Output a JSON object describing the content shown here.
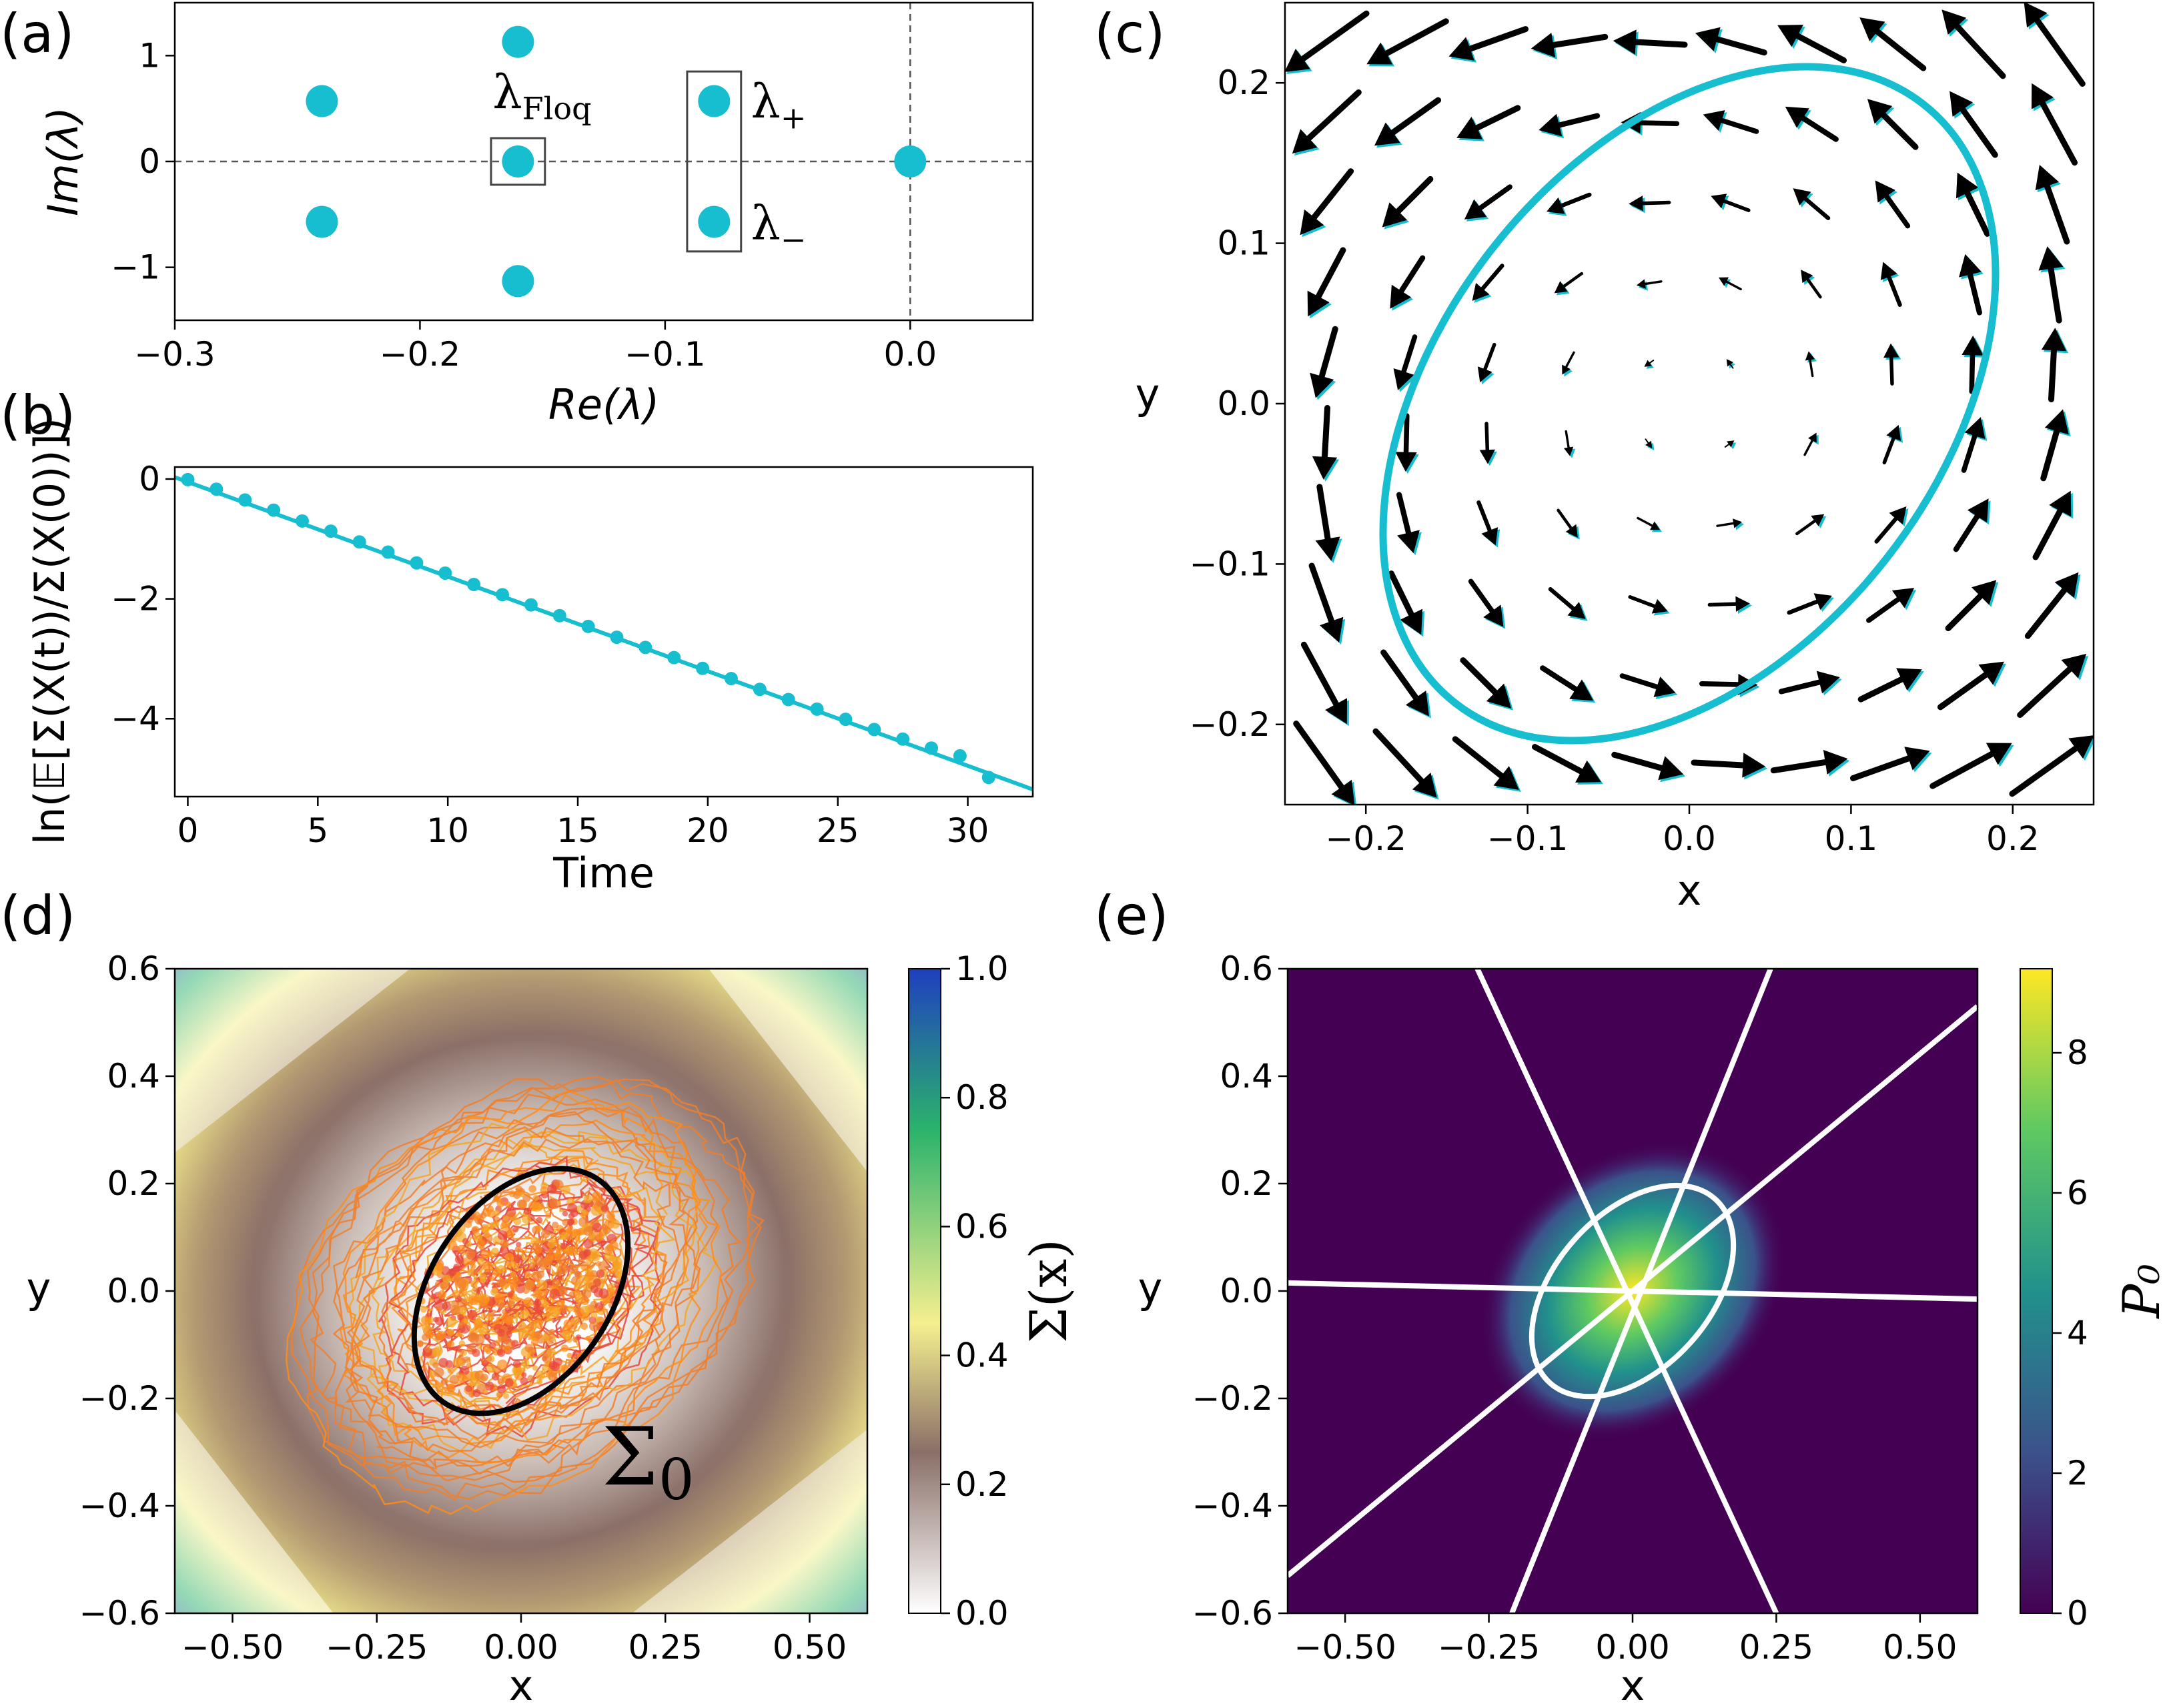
{
  "colors": {
    "teal": "#17becf",
    "black": "#000000",
    "trajectory": [
      "#e8473a",
      "#f07f2c",
      "#f5a623",
      "#ff8c1a"
    ],
    "sigma_map": [
      "#ffffff",
      "#8a6f68",
      "#f5ef8f",
      "#2bb36b",
      "#1f3fbf"
    ],
    "viridis": [
      "#440154",
      "#3b528b",
      "#21918c",
      "#5ec962",
      "#fde725"
    ]
  },
  "panels": {
    "a": {
      "letter": "(a)"
    },
    "b": {
      "letter": "(b)"
    },
    "c": {
      "letter": "(c)"
    },
    "d": {
      "letter": "(d)"
    },
    "e": {
      "letter": "(e)"
    }
  },
  "chart_data": [
    {
      "id": "a",
      "type": "scatter",
      "xlabel": "Re(λ)",
      "ylabel": "Im(λ)",
      "xlim": [
        -0.3,
        0.05
      ],
      "ylim": [
        -1.5,
        1.5
      ],
      "xticks": [
        -0.3,
        -0.2,
        -0.1,
        0.0
      ],
      "xtick_labels": [
        "−0.3",
        "−0.2",
        "−0.1",
        "0.0"
      ],
      "yticks": [
        1,
        0,
        -1
      ],
      "ytick_labels": [
        "1",
        "0",
        "−1"
      ],
      "points": [
        {
          "x": -0.24,
          "y": 0.57
        },
        {
          "x": -0.24,
          "y": -0.57
        },
        {
          "x": -0.16,
          "y": 1.13
        },
        {
          "x": -0.16,
          "y": 0.0
        },
        {
          "x": -0.16,
          "y": -1.13
        },
        {
          "x": -0.08,
          "y": 0.57
        },
        {
          "x": -0.08,
          "y": -0.57
        },
        {
          "x": 0.0,
          "y": 0.0
        }
      ],
      "annotations": [
        {
          "text": "λ",
          "sub": "Floq",
          "x": -0.16,
          "y": 0.45
        },
        {
          "text": "λ",
          "sub": "+",
          "x": -0.065,
          "y": 0.55
        },
        {
          "text": "λ",
          "sub": "−",
          "x": -0.065,
          "y": -0.6
        }
      ],
      "boxes": [
        {
          "x0": -0.171,
          "x1": -0.149,
          "y0": -0.22,
          "y1": 0.22
        },
        {
          "x0": -0.091,
          "x1": -0.069,
          "y0": -0.85,
          "y1": 0.85
        }
      ],
      "guides": {
        "h": 0,
        "v": 0
      }
    },
    {
      "id": "b",
      "type": "line",
      "xlabel": "Time",
      "ylabel": "ln(𝔼[Σ(X(t))/Σ(X(0))])",
      "xlim": [
        -0.5,
        32.5
      ],
      "ylim": [
        -5.3,
        0.2
      ],
      "xticks": [
        0,
        5,
        10,
        15,
        20,
        25,
        30
      ],
      "xtick_labels": [
        "0",
        "5",
        "10",
        "15",
        "20",
        "25",
        "30"
      ],
      "yticks": [
        0,
        -2,
        -4
      ],
      "ytick_labels": [
        "0",
        "−2",
        "−4"
      ],
      "line": {
        "x0": -0.5,
        "y0": 0.03,
        "x1": 32.5,
        "y1": -5.18
      },
      "points_x": [
        0,
        1.1,
        2.2,
        3.3,
        4.4,
        5.5,
        6.6,
        7.7,
        8.8,
        9.9,
        11,
        12.1,
        13.2,
        14.3,
        15.4,
        16.5,
        17.6,
        18.7,
        19.8,
        20.9,
        22,
        23.1,
        24.2,
        25.3,
        26.4,
        27.5,
        28.6,
        29.7,
        30.8
      ],
      "points_y": [
        -0.01,
        -0.17,
        -0.35,
        -0.52,
        -0.7,
        -0.87,
        -1.05,
        -1.22,
        -1.4,
        -1.57,
        -1.76,
        -1.93,
        -2.1,
        -2.28,
        -2.46,
        -2.64,
        -2.81,
        -2.98,
        -3.16,
        -3.33,
        -3.51,
        -3.68,
        -3.84,
        -4.01,
        -4.18,
        -4.34,
        -4.49,
        -4.62,
        -4.98
      ]
    },
    {
      "id": "c",
      "type": "quiver",
      "xlabel": "x",
      "ylabel": "y",
      "xlim": [
        -0.25,
        0.25
      ],
      "ylim": [
        -0.25,
        0.25
      ],
      "xticks": [
        -0.2,
        -0.1,
        0.0,
        0.1,
        0.2
      ],
      "xtick_labels": [
        "−0.2",
        "−0.1",
        "0.0",
        "0.1",
        "0.2"
      ],
      "yticks": [
        0.2,
        0.1,
        0.0,
        -0.1,
        -0.2
      ],
      "ytick_labels": [
        "0.2",
        "0.1",
        "0.0",
        "−0.1",
        "−0.2"
      ],
      "grid_n": 10,
      "field": {
        "rot": 0.9,
        "shear": 0.35,
        "damp": 0.2
      },
      "ellipse": {
        "cx": 0.0,
        "cy": 0.0,
        "a": 0.235,
        "b": 0.155,
        "angle_deg": 52
      }
    },
    {
      "id": "d",
      "type": "heatmap",
      "xlabel": "x",
      "ylabel": "y",
      "xlim": [
        -0.6,
        0.6
      ],
      "ylim": [
        -0.6,
        0.6
      ],
      "xticks": [
        -0.5,
        -0.25,
        0.0,
        0.25,
        0.5
      ],
      "xtick_labels": [
        "−0.50",
        "−0.25",
        "0.00",
        "0.25",
        "0.50"
      ],
      "yticks": [
        0.6,
        0.4,
        0.2,
        0.0,
        -0.2,
        -0.4,
        -0.6
      ],
      "ytick_labels": [
        "0.6",
        "0.4",
        "0.2",
        "0.0",
        "−0.2",
        "−0.4",
        "−0.6"
      ],
      "colorbar": {
        "label": "Σ(x)",
        "min": 0.0,
        "max": 1.0,
        "ticks": [
          1.0,
          0.8,
          0.6,
          0.4,
          0.2,
          0.0
        ],
        "tick_labels": [
          "1.0",
          "0.8",
          "0.6",
          "0.4",
          "0.2",
          "0.0"
        ]
      },
      "ellipse": {
        "cx": 0.0,
        "cy": 0.0,
        "a": 0.235,
        "b": 0.155,
        "angle_deg": 55
      },
      "annotation": {
        "text": "Σ",
        "sub": "0",
        "x": 0.14,
        "y": -0.36
      }
    },
    {
      "id": "e",
      "type": "heatmap",
      "xlabel": "x",
      "ylabel": "y",
      "xlim": [
        -0.6,
        0.6
      ],
      "ylim": [
        -0.6,
        0.6
      ],
      "xticks": [
        -0.5,
        -0.25,
        0.0,
        0.25,
        0.5
      ],
      "xtick_labels": [
        "−0.50",
        "−0.25",
        "0.00",
        "0.25",
        "0.50"
      ],
      "yticks": [
        0.6,
        0.4,
        0.2,
        0.0,
        -0.2,
        -0.4,
        -0.6
      ],
      "ytick_labels": [
        "0.6",
        "0.4",
        "0.2",
        "0.0",
        "−0.2",
        "−0.4",
        "−0.6"
      ],
      "colorbar": {
        "label": "P₀",
        "min": 0,
        "max": 9.2,
        "ticks": [
          8,
          6,
          4,
          2,
          0
        ],
        "tick_labels": [
          "8",
          "6",
          "4",
          "2",
          "0"
        ]
      },
      "ellipse": {
        "cx": 0.0,
        "cy": 0.0,
        "a": 0.215,
        "b": 0.135,
        "angle_deg": 48
      },
      "lines": [
        {
          "x0": -0.6,
          "y0": 0.015,
          "x1": 0.6,
          "y1": -0.015
        },
        {
          "x0": -0.6,
          "y0": -0.53,
          "x1": 0.6,
          "y1": 0.53
        },
        {
          "x0": -0.27,
          "y0": 0.6,
          "x1": 0.25,
          "y1": -0.6
        },
        {
          "x0": 0.24,
          "y0": 0.6,
          "x1": -0.21,
          "y1": -0.6
        }
      ]
    }
  ]
}
